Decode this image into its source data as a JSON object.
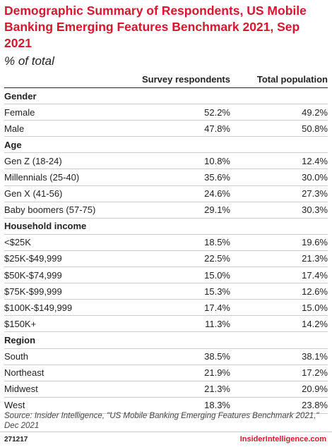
{
  "header": {
    "title": "Demographic Summary of Respondents, US Mobile Banking Emerging Features Benchmark 2021, Sep 2021",
    "subtitle": "% of total"
  },
  "table": {
    "columns": [
      "Survey respondents",
      "Total population"
    ],
    "sections": [
      {
        "name": "Gender",
        "rows": [
          [
            "Female",
            "52.2%",
            "49.2%"
          ],
          [
            "Male",
            "47.8%",
            "50.8%"
          ]
        ]
      },
      {
        "name": "Age",
        "rows": [
          [
            "Gen Z (18-24)",
            "10.8%",
            "12.4%"
          ],
          [
            "Millennials (25-40)",
            "35.6%",
            "30.0%"
          ],
          [
            "Gen X (41-56)",
            "24.6%",
            "27.3%"
          ],
          [
            "Baby boomers (57-75)",
            "29.1%",
            "30.3%"
          ]
        ]
      },
      {
        "name": "Household income",
        "rows": [
          [
            "<$25K",
            "18.5%",
            "19.6%"
          ],
          [
            "$25K-$49,999",
            "22.5%",
            "21.3%"
          ],
          [
            "$50K-$74,999",
            "15.0%",
            "17.4%"
          ],
          [
            "$75K-$99,999",
            "15.3%",
            "12.6%"
          ],
          [
            "$100K-$149,999",
            "17.4%",
            "15.0%"
          ],
          [
            "$150K+",
            "11.3%",
            "14.2%"
          ]
        ]
      },
      {
        "name": "Region",
        "rows": [
          [
            "South",
            "38.5%",
            "38.1%"
          ],
          [
            "Northeast",
            "21.9%",
            "17.2%"
          ],
          [
            "Midwest",
            "21.3%",
            "20.9%"
          ],
          [
            "West",
            "18.3%",
            "23.8%"
          ]
        ]
      }
    ]
  },
  "source": "Source: Insider Intelligence, \"US Mobile Banking Emerging Features Benchmark 2021,\" Dec 2021",
  "footer": {
    "id": "271217",
    "brand": "InsiderIntelligence.com"
  }
}
